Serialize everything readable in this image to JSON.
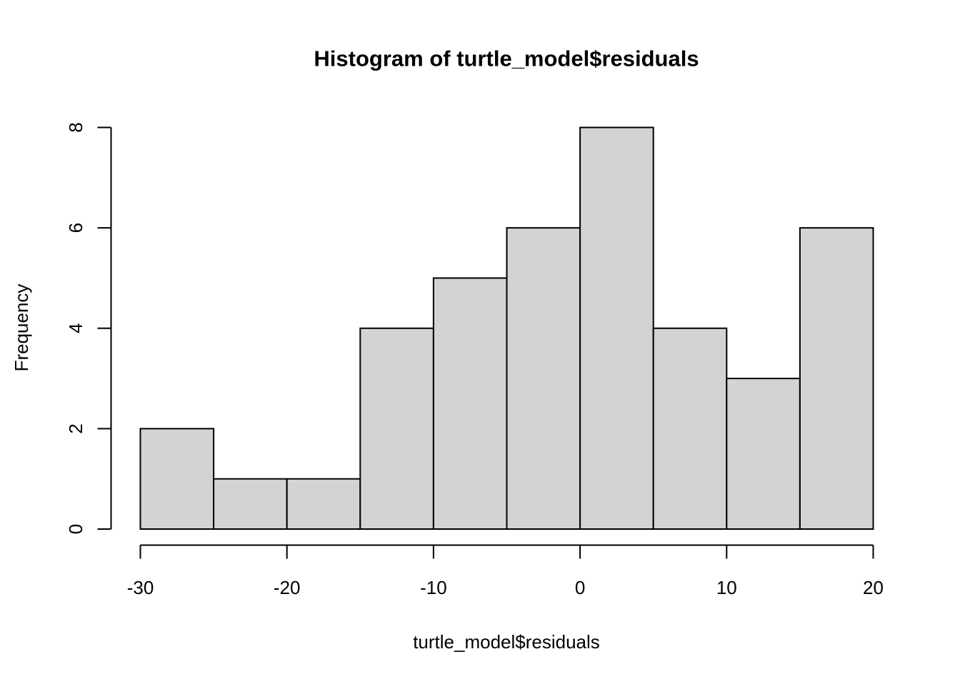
{
  "chart_data": {
    "type": "bar",
    "subtype": "histogram",
    "title": "Histogram of turtle_model$residuals",
    "xlabel": "turtle_model$residuals",
    "ylabel": "Frequency",
    "bin_breaks": [
      -30,
      -25,
      -20,
      -15,
      -10,
      -5,
      0,
      5,
      10,
      15,
      20
    ],
    "counts": [
      2,
      1,
      1,
      4,
      5,
      6,
      8,
      4,
      3,
      6
    ],
    "xlim": [
      -30,
      20
    ],
    "ylim": [
      0,
      8
    ],
    "x_ticks": [
      "-30",
      "-20",
      "-10",
      "0",
      "10",
      "20"
    ],
    "x_tick_values": [
      -30,
      -20,
      -10,
      0,
      10,
      20
    ],
    "y_ticks": [
      "0",
      "2",
      "4",
      "6",
      "8"
    ],
    "y_tick_values": [
      0,
      2,
      4,
      6,
      8
    ],
    "grid": false,
    "legend_position": "none",
    "colors": {
      "bar_fill": "#d3d3d3",
      "bar_stroke": "#000000",
      "axis": "#000000",
      "background": "#ffffff"
    }
  }
}
